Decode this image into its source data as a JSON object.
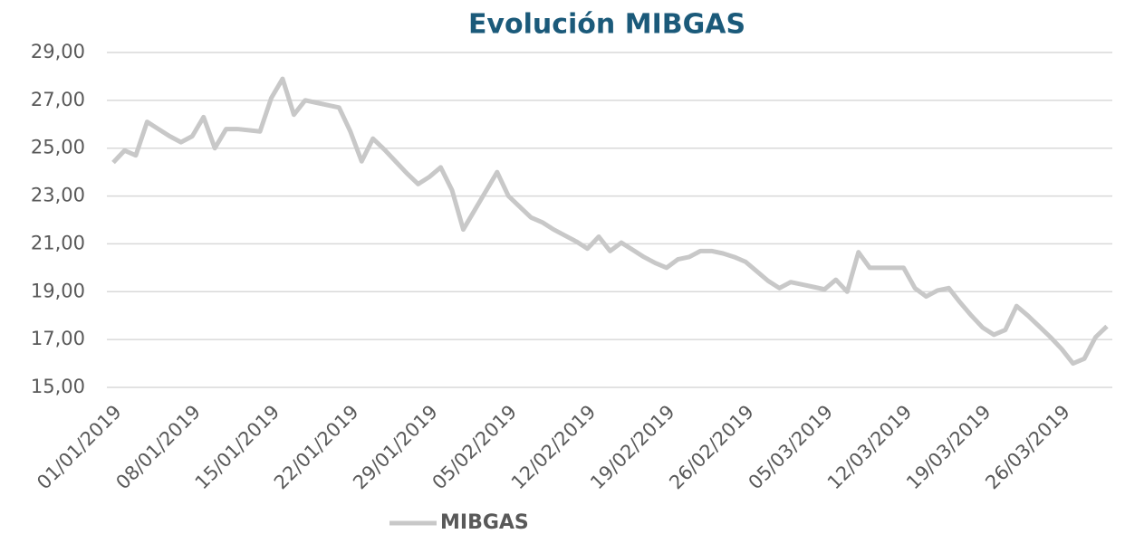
{
  "chart_data": {
    "type": "line",
    "title": "Evolución MIBGAS",
    "x": [
      "01/01/2019",
      "02/01/2019",
      "03/01/2019",
      "04/01/2019",
      "05/01/2019",
      "06/01/2019",
      "07/01/2019",
      "08/01/2019",
      "09/01/2019",
      "10/01/2019",
      "11/01/2019",
      "12/01/2019",
      "13/01/2019",
      "14/01/2019",
      "15/01/2019",
      "16/01/2019",
      "17/01/2019",
      "18/01/2019",
      "19/01/2019",
      "20/01/2019",
      "21/01/2019",
      "22/01/2019",
      "23/01/2019",
      "24/01/2019",
      "25/01/2019",
      "26/01/2019",
      "27/01/2019",
      "28/01/2019",
      "29/01/2019",
      "30/01/2019",
      "31/01/2019",
      "01/02/2019",
      "02/02/2019",
      "03/02/2019",
      "04/02/2019",
      "05/02/2019",
      "06/02/2019",
      "07/02/2019",
      "08/02/2019",
      "09/02/2019",
      "10/02/2019",
      "11/02/2019",
      "12/02/2019",
      "13/02/2019",
      "14/02/2019",
      "15/02/2019",
      "16/02/2019",
      "17/02/2019",
      "18/02/2019",
      "19/02/2019",
      "20/02/2019",
      "21/02/2019",
      "22/02/2019",
      "23/02/2019",
      "24/02/2019",
      "25/02/2019",
      "26/02/2019",
      "27/02/2019",
      "28/02/2019",
      "01/03/2019",
      "02/03/2019",
      "03/03/2019",
      "04/03/2019",
      "05/03/2019",
      "06/03/2019",
      "07/03/2019",
      "08/03/2019",
      "09/03/2019",
      "10/03/2019",
      "11/03/2019",
      "12/03/2019",
      "13/03/2019",
      "14/03/2019",
      "15/03/2019",
      "16/03/2019",
      "17/03/2019",
      "18/03/2019",
      "19/03/2019",
      "20/03/2019",
      "21/03/2019",
      "22/03/2019",
      "23/03/2019",
      "24/03/2019",
      "25/03/2019",
      "26/03/2019",
      "27/03/2019",
      "28/03/2019",
      "29/03/2019",
      "30/03/2019"
    ],
    "series": [
      {
        "name": "MIBGAS",
        "color": "#c8c8c8",
        "values": [
          24.4,
          24.9,
          24.7,
          26.1,
          25.8,
          25.5,
          25.25,
          25.5,
          26.3,
          25.0,
          25.8,
          25.8,
          25.75,
          25.7,
          27.1,
          27.9,
          26.4,
          27.0,
          26.9,
          26.8,
          26.7,
          25.7,
          24.45,
          25.4,
          24.95,
          24.45,
          23.95,
          23.5,
          23.8,
          24.2,
          23.25,
          21.6,
          22.4,
          23.2,
          24.0,
          23.0,
          22.55,
          22.1,
          21.9,
          21.6,
          21.35,
          21.1,
          20.8,
          21.3,
          20.7,
          21.05,
          20.75,
          20.45,
          20.2,
          20.0,
          20.35,
          20.45,
          20.7,
          20.7,
          20.6,
          20.45,
          20.25,
          19.85,
          19.45,
          19.15,
          19.4,
          19.3,
          19.2,
          19.1,
          19.5,
          19.0,
          20.65,
          20.0,
          20.0,
          20.0,
          20.0,
          19.15,
          18.8,
          19.05,
          19.15,
          18.55,
          18.0,
          17.5,
          17.2,
          17.4,
          18.4,
          18.0,
          17.55,
          17.1,
          16.6,
          16.0,
          16.2,
          17.1,
          17.55
        ]
      }
    ],
    "xticks": [
      "01/01/2019",
      "08/01/2019",
      "15/01/2019",
      "22/01/2019",
      "29/01/2019",
      "05/02/2019",
      "12/02/2019",
      "19/02/2019",
      "26/02/2019",
      "05/03/2019",
      "12/03/2019",
      "19/03/2019",
      "26/03/2019"
    ],
    "ylim": [
      15,
      29
    ],
    "yticks": [
      {
        "value": 15,
        "label": "15,00"
      },
      {
        "value": 17,
        "label": "17,00"
      },
      {
        "value": 19,
        "label": "19,00"
      },
      {
        "value": 21,
        "label": "21,00"
      },
      {
        "value": 23,
        "label": "23,00"
      },
      {
        "value": 25,
        "label": "25,00"
      },
      {
        "value": 27,
        "label": "27,00"
      },
      {
        "value": 29,
        "label": "29,00"
      }
    ],
    "grid": true,
    "legend": "bottom"
  }
}
